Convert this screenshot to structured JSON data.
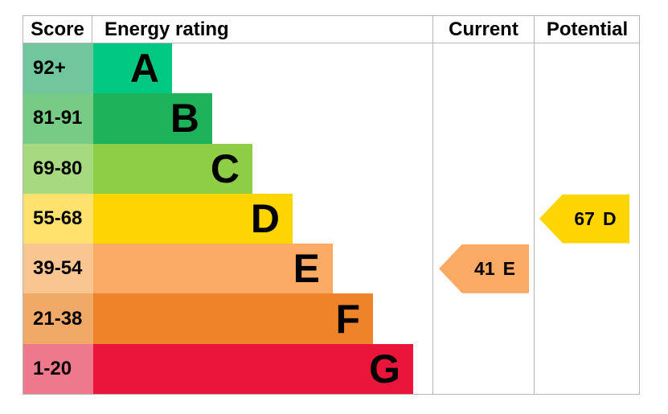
{
  "header": {
    "score": "Score",
    "rating": "Energy rating",
    "current": "Current",
    "potential": "Potential"
  },
  "chart_data": {
    "type": "bar",
    "subtype": "epc-energy-efficiency-rating",
    "orientation": "horizontal",
    "bands": [
      {
        "grade": "A",
        "score": "92+",
        "bar_color": "#00c781",
        "score_tint": "#72c69e"
      },
      {
        "grade": "B",
        "score": "81-91",
        "bar_color": "#1eb35a",
        "score_tint": "#77cb85"
      },
      {
        "grade": "C",
        "score": "69-80",
        "bar_color": "#8dce46",
        "score_tint": "#a7d981"
      },
      {
        "grade": "D",
        "score": "55-68",
        "bar_color": "#ffd500",
        "score_tint": "#ffe26d"
      },
      {
        "grade": "E",
        "score": "39-54",
        "bar_color": "#fbaa65",
        "score_tint": "#f9c591"
      },
      {
        "grade": "F",
        "score": "21-38",
        "bar_color": "#ee8329",
        "score_tint": "#f1a967"
      },
      {
        "grade": "G",
        "score": "1-20",
        "bar_color": "#e9153b",
        "score_tint": "#ee798c"
      }
    ],
    "current": {
      "value": 41,
      "grade": "E",
      "arrow_color": "#fbaa65"
    },
    "potential": {
      "value": 67,
      "grade": "D",
      "arrow_color": "#ffd500"
    },
    "border_color": "#b4b6b8",
    "text_color": "#000000",
    "grid": "column-dividers-only",
    "legend_position": "none"
  }
}
